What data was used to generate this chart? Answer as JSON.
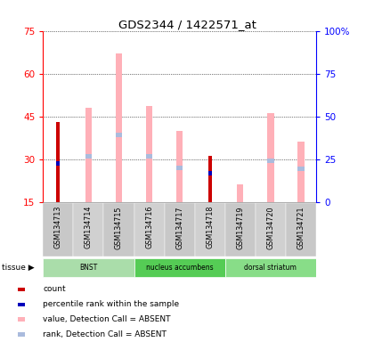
{
  "title": "GDS2344 / 1422571_at",
  "samples": [
    "GSM134713",
    "GSM134714",
    "GSM134715",
    "GSM134716",
    "GSM134717",
    "GSM134718",
    "GSM134719",
    "GSM134720",
    "GSM134721"
  ],
  "tissues": [
    {
      "name": "BNST",
      "start": 0,
      "end": 3,
      "color": "#aaddaa"
    },
    {
      "name": "nucleus accumbens",
      "start": 3,
      "end": 6,
      "color": "#55cc55"
    },
    {
      "name": "dorsal striatum",
      "start": 6,
      "end": 9,
      "color": "#88dd88"
    }
  ],
  "value_absent": [
    null,
    48.0,
    67.0,
    48.5,
    40.0,
    null,
    21.0,
    46.0,
    36.0
  ],
  "rank_absent": [
    null,
    31.0,
    38.5,
    31.0,
    27.0,
    null,
    null,
    29.5,
    26.5
  ],
  "count_present": [
    43.0,
    null,
    null,
    null,
    null,
    31.0,
    null,
    null,
    null
  ],
  "rank_present": [
    28.5,
    null,
    null,
    null,
    null,
    25.0,
    null,
    null,
    null
  ],
  "left_ylim": [
    15,
    75
  ],
  "left_yticks": [
    15,
    30,
    45,
    60,
    75
  ],
  "right_ylim": [
    0,
    100
  ],
  "right_yticks": [
    0,
    25,
    50,
    75,
    100
  ],
  "count_color": "#CC0000",
  "rank_color": "#0000BB",
  "value_absent_color": "#FFB0B8",
  "rank_absent_color": "#AABBDD",
  "bg_color": "#FFFFFF",
  "legend_items": [
    {
      "label": "count",
      "color": "#CC0000"
    },
    {
      "label": "percentile rank within the sample",
      "color": "#0000BB"
    },
    {
      "label": "value, Detection Call = ABSENT",
      "color": "#FFB0B8"
    },
    {
      "label": "rank, Detection Call = ABSENT",
      "color": "#AABBDD"
    }
  ],
  "tissue_label": "tissue"
}
